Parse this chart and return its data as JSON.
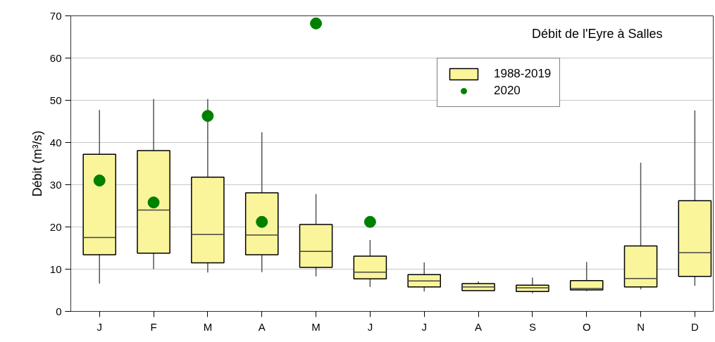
{
  "chart_data": {
    "type": "box",
    "title": "Débit de l'Eyre à Salles",
    "ylabel": "Débit (m³/s)",
    "categories": [
      "J",
      "F",
      "M",
      "A",
      "M",
      "J",
      "J",
      "A",
      "S",
      "O",
      "N",
      "D"
    ],
    "ylim": [
      0,
      70
    ],
    "yticks": [
      0,
      10,
      20,
      30,
      40,
      50,
      60,
      70
    ],
    "grid": "y",
    "legend": "top right",
    "marker": "circle",
    "series": [
      {
        "name": "1988-2019",
        "color": "#faf59b",
        "boxes": [
          {
            "low": 6.6,
            "q1": 13.4,
            "median": 17.5,
            "q3": 37.2,
            "high": 47.7
          },
          {
            "low": 10.0,
            "q1": 13.8,
            "median": 24.0,
            "q3": 38.1,
            "high": 50.3
          },
          {
            "low": 9.2,
            "q1": 11.5,
            "median": 18.2,
            "q3": 31.8,
            "high": 50.3
          },
          {
            "low": 9.3,
            "q1": 13.4,
            "median": 18.1,
            "q3": 28.1,
            "high": 42.4
          },
          {
            "low": 8.3,
            "q1": 10.4,
            "median": 14.2,
            "q3": 20.6,
            "high": 27.8
          },
          {
            "low": 5.8,
            "q1": 7.7,
            "median": 9.3,
            "q3": 13.1,
            "high": 16.9
          },
          {
            "low": 4.7,
            "q1": 5.8,
            "median": 7.2,
            "q3": 8.7,
            "high": 11.6
          },
          {
            "low": 4.9,
            "q1": 4.9,
            "median": 5.8,
            "q3": 6.6,
            "high": 7.1
          },
          {
            "low": 4.3,
            "q1": 4.7,
            "median": 5.6,
            "q3": 6.2,
            "high": 8.0
          },
          {
            "low": 4.8,
            "q1": 5.1,
            "median": 5.4,
            "q3": 7.3,
            "high": 11.7
          },
          {
            "low": 5.2,
            "q1": 5.8,
            "median": 7.8,
            "q3": 15.5,
            "high": 35.2
          },
          {
            "low": 6.1,
            "q1": 8.3,
            "median": 13.9,
            "q3": 26.2,
            "high": 47.6
          }
        ]
      },
      {
        "name": "2020",
        "type": "scatter",
        "color": "#008000",
        "values": [
          31.0,
          25.8,
          46.3,
          21.2,
          68.2,
          21.2,
          null,
          null,
          null,
          null,
          null,
          null
        ]
      }
    ]
  }
}
